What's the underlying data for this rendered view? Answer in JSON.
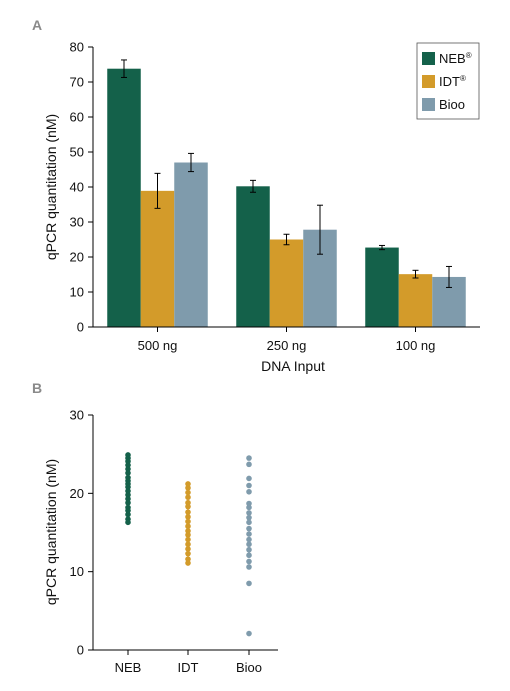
{
  "chart_data": [
    {
      "panel": "A",
      "type": "bar",
      "xlabel": "DNA Input",
      "ylabel": "qPCR quantitation (nM)",
      "ylim": [
        0,
        80
      ],
      "yticks": [
        0,
        10,
        20,
        30,
        40,
        50,
        60,
        70,
        80
      ],
      "categories": [
        "500 ng",
        "250 ng",
        "100 ng"
      ],
      "legend_position": "top-right",
      "grid": false,
      "series": [
        {
          "name": "NEB",
          "superscript": "®",
          "color": "#14614a",
          "values": [
            73.8,
            40.2,
            22.7
          ],
          "errors": [
            2.5,
            1.7,
            0.6
          ]
        },
        {
          "name": "IDT",
          "superscript": "®",
          "color": "#d39b2a",
          "values": [
            38.9,
            25.0,
            15.1
          ],
          "errors": [
            5.0,
            1.5,
            1.1
          ]
        },
        {
          "name": "Bioo",
          "superscript": "",
          "color": "#7f9bac",
          "values": [
            47.0,
            27.8,
            14.3
          ],
          "errors": [
            2.6,
            7.0,
            3.0
          ]
        }
      ]
    },
    {
      "panel": "B",
      "type": "scatter",
      "xlabel": "",
      "ylabel": "qPCR quantitation (nM)",
      "ylim": [
        0,
        30
      ],
      "yticks": [
        0,
        10,
        20,
        30
      ],
      "categories": [
        "NEB",
        "IDT",
        "Bioo"
      ],
      "grid": false,
      "series": [
        {
          "name": "NEB",
          "color": "#14614a",
          "values": [
            24.9,
            24.5,
            24.1,
            23.6,
            23.1,
            22.6,
            22.0,
            21.6,
            21.2,
            20.8,
            20.3,
            19.8,
            19.3,
            18.8,
            18.2,
            17.8,
            17.3,
            16.7,
            16.3
          ]
        },
        {
          "name": "IDT",
          "color": "#d39b2a",
          "values": [
            21.2,
            20.7,
            20.1,
            19.5,
            18.8,
            18.3,
            17.6,
            17.0,
            16.4,
            15.8,
            15.2,
            14.7,
            14.1,
            13.5,
            12.9,
            12.3,
            11.6,
            11.1
          ]
        },
        {
          "name": "Bioo",
          "color": "#7f9bac",
          "values": [
            24.5,
            23.7,
            21.9,
            21.0,
            20.2,
            18.7,
            18.2,
            17.5,
            16.9,
            16.3,
            15.5,
            14.8,
            14.1,
            13.5,
            12.8,
            12.1,
            11.3,
            10.6,
            8.5,
            2.1
          ]
        }
      ]
    }
  ]
}
